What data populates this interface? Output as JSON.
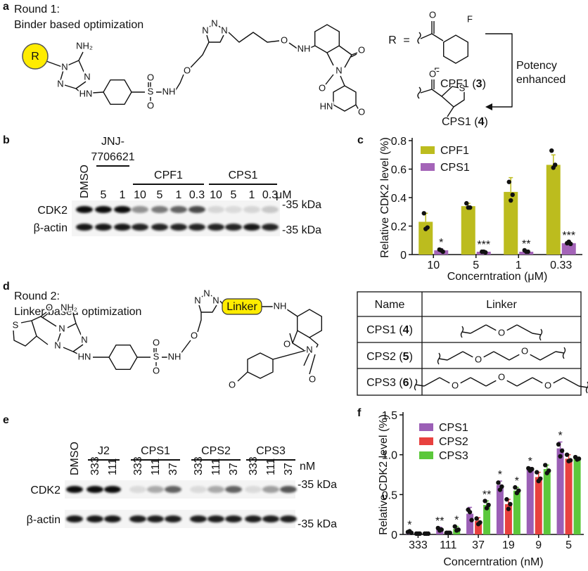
{
  "panel_labels": [
    "a",
    "b",
    "c",
    "d",
    "e",
    "f"
  ],
  "round1": {
    "title": "Round 1:",
    "subtitle": "Binder based optimization",
    "r": "R",
    "atoms": [
      "NH₂",
      "N",
      "N",
      "N",
      "HN",
      "S",
      "O",
      "O",
      "NH",
      "O",
      "N",
      "N",
      "N",
      "O",
      "NH",
      "O",
      "N",
      "O",
      "HN",
      "O"
    ]
  },
  "r_scheme": {
    "r": "R",
    "equals": "=",
    "cpf1_atoms": [
      "O",
      "F",
      "F"
    ],
    "cps1_atoms": [
      "O",
      "S"
    ],
    "cpf1": [
      "CPF1 (",
      "3",
      ")"
    ],
    "cps1": [
      "CPS1 (",
      "4",
      ")"
    ],
    "arrow_label": [
      "Potency",
      "enhanced"
    ]
  },
  "blot_b": {
    "control": "DMSO",
    "groups": [
      [
        "JNJ-",
        "7706621"
      ],
      [
        "CPF1"
      ],
      [
        "CPS1"
      ]
    ],
    "concentrations": [
      "5",
      "1",
      "10",
      "5",
      "1",
      "0.3",
      "10",
      "5",
      "1",
      "0.3"
    ],
    "unit": "μM",
    "rows": [
      "CDK2",
      "β-actin"
    ],
    "markers": [
      "-35 kDa",
      "-35 kDa"
    ]
  },
  "round2": {
    "title": "Round 2:",
    "subtitle": "Linker based optimization",
    "linker": "Linker",
    "atoms": [
      "O",
      "NH₂",
      "S",
      "N",
      "N",
      "N",
      "HN",
      "S",
      "O",
      "O",
      "NH",
      "O",
      "N",
      "N",
      "N",
      "NH",
      "O",
      "N",
      "O",
      "O"
    ]
  },
  "table": {
    "headers": [
      "Name",
      "Linker"
    ],
    "rows": [
      {
        "name": [
          "CPS1 (",
          "4",
          ")"
        ],
        "linker_atoms": [
          "O"
        ]
      },
      {
        "name": [
          "CPS2 (",
          "5",
          ")"
        ],
        "linker_atoms": [
          "O",
          "O"
        ]
      },
      {
        "name": [
          "CPS3 (",
          "6",
          ")"
        ],
        "linker_atoms": [
          "O",
          "O",
          "O"
        ]
      }
    ]
  },
  "blot_e": {
    "control": "DMSO",
    "groups": [
      [
        "J2"
      ],
      [
        "CPS1"
      ],
      [
        "CPS2"
      ],
      [
        "CPS3"
      ]
    ],
    "concentrations": [
      "333",
      "111",
      "333",
      "111",
      "37",
      "333",
      "111",
      "37",
      "333",
      "111",
      "37"
    ],
    "unit": "nM",
    "rows": [
      "CDK2",
      "β-actin"
    ],
    "markers": [
      "-35 kDa",
      "-35 kDa"
    ]
  },
  "chart_data": [
    {
      "type": "bar",
      "ylabel": "Relative  CDK2 level (%)",
      "xlabel": "Concerntration (μM)",
      "categories": [
        "10",
        "5",
        "1",
        "0.33"
      ],
      "series": [
        {
          "name": "CPF1",
          "color": "#bcbc1e",
          "values": [
            0.23,
            0.34,
            0.44,
            0.63
          ],
          "errors": [
            0.06,
            0.02,
            0.1,
            0.07
          ],
          "points": [
            [
              0.29,
              0.19,
              0.18
            ],
            [
              0.36,
              0.33,
              0.33
            ],
            [
              0.51,
              0.42,
              0.38
            ],
            [
              0.73,
              0.63,
              0.61
            ]
          ]
        },
        {
          "name": "CPS1",
          "color": "#a464b8",
          "values": [
            0.03,
            0.02,
            0.02,
            0.08
          ],
          "errors": [
            0.01,
            0.005,
            0.01,
            0.01
          ],
          "points": [
            [
              0.035,
              0.02,
              0.03
            ],
            [
              0.02,
              0.015,
              0.02
            ],
            [
              0.03,
              0.02,
              0.02
            ],
            [
              0.08,
              0.075,
              0.09
            ]
          ],
          "significance": [
            "*",
            "***",
            "**",
            "***"
          ]
        }
      ],
      "ylim": [
        0,
        0.8
      ],
      "yticks": [
        0,
        0.2,
        0.4,
        0.6,
        0.8
      ],
      "legend": "upper-left"
    },
    {
      "type": "bar",
      "ylabel": "Relative  CDK2 level (%)",
      "xlabel": "Concerntration (nM)",
      "categories": [
        "333",
        "111",
        "37",
        "19",
        "9",
        "5"
      ],
      "series": [
        {
          "name": "CPS1",
          "color": "#9b5fb6",
          "values": [
            0.03,
            0.07,
            0.26,
            0.62,
            0.82,
            1.08
          ],
          "errors": [
            0.01,
            0.02,
            0.08,
            0.05,
            0.02,
            0.08
          ],
          "points": [
            [
              0.03,
              0.02,
              0.04
            ],
            [
              0.08,
              0.06,
              0.05
            ],
            [
              0.31,
              0.18,
              0.28
            ],
            [
              0.65,
              0.6,
              0.56
            ],
            [
              0.83,
              0.82,
              0.8
            ],
            [
              1.13,
              1.05,
              0.98
            ]
          ],
          "significance": [
            "*",
            "**",
            null,
            "*",
            "*",
            "*"
          ]
        },
        {
          "name": "CPS2",
          "color": "#e8413f",
          "values": [
            0.01,
            0.02,
            0.17,
            0.38,
            0.72,
            0.95
          ],
          "errors": [
            0.005,
            0.01,
            0.04,
            0.06,
            0.06,
            0.05
          ],
          "points": [
            [
              0.01,
              0.01,
              0.01
            ],
            [
              0.02,
              0.02,
              0.02
            ],
            [
              0.2,
              0.15,
              0.13
            ],
            [
              0.44,
              0.38,
              0.32
            ],
            [
              0.78,
              0.7,
              0.67
            ],
            [
              1,
              0.93,
              0.92
            ]
          ]
        },
        {
          "name": "CPS3",
          "color": "#5cc83b",
          "values": [
            0.01,
            0.07,
            0.37,
            0.55,
            0.82,
            0.95
          ],
          "errors": [
            0.005,
            0.03,
            0.05,
            0.04,
            0.05,
            0.02
          ],
          "points": [
            [
              0.01,
              0.01,
              0.01
            ],
            [
              0.1,
              0.06,
              0.05
            ],
            [
              0.42,
              0.37,
              0.33
            ],
            [
              0.59,
              0.55,
              0.52
            ],
            [
              0.87,
              0.8,
              0.77
            ],
            [
              0.97,
              0.95,
              0.94
            ]
          ],
          "significance": [
            null,
            "*",
            "**",
            "*",
            null,
            null
          ]
        }
      ],
      "ylim": [
        0,
        1.5
      ],
      "yticks": [
        0,
        0.5,
        {
          "value": 1,
          "label": "1.0"
        },
        1.5
      ],
      "legend": "upper-left"
    }
  ]
}
